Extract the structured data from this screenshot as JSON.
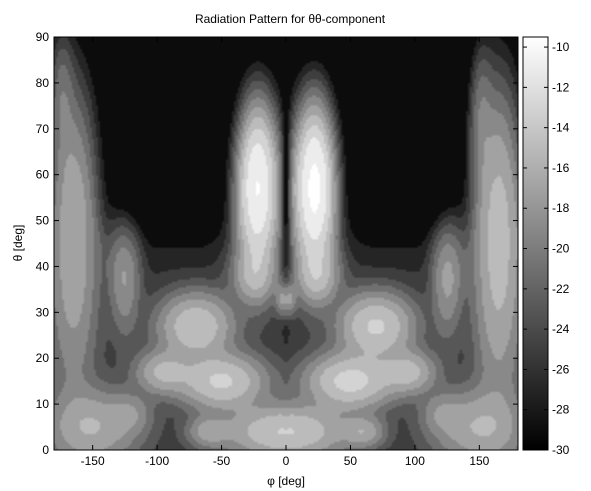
{
  "chart_data": {
    "type": "heatmap",
    "title": "Radiation Pattern for θθ-component",
    "xlabel": "φ [deg]",
    "ylabel": "θ [deg]",
    "xlim": [
      -180,
      180
    ],
    "ylim": [
      0,
      90
    ],
    "xticks": [
      "-150",
      "-100",
      "-50",
      "0",
      "50",
      "100",
      "150"
    ],
    "yticks": [
      "0",
      "10",
      "20",
      "30",
      "40",
      "50",
      "60",
      "70",
      "80",
      "90"
    ],
    "colorbar": {
      "ticks": [
        "-10",
        "-12",
        "-14",
        "-16",
        "-18",
        "-20",
        "-22",
        "-24",
        "-26",
        "-28",
        "-30"
      ],
      "range": [
        -30,
        -9.5
      ],
      "colormap": "gray"
    },
    "levels": [
      -30,
      -28,
      -26,
      -24,
      -22,
      -20,
      -18,
      -16,
      -14,
      -12,
      -10
    ],
    "grid": false,
    "features": [
      {
        "name": "main lobe right",
        "phi": 22,
        "theta": 57,
        "value": -14
      },
      {
        "name": "main lobe left",
        "phi": -22,
        "theta": 57,
        "value": -15
      },
      {
        "name": "null",
        "phi": 0,
        "theta": 55,
        "value": -30
      },
      {
        "name": "central spot",
        "phi": 0,
        "theta": 33,
        "value": -27
      },
      {
        "name": "side lobe right",
        "phi": 70,
        "theta": 27,
        "value": -19
      },
      {
        "name": "side lobe left",
        "phi": -70,
        "theta": 27,
        "value": -20
      },
      {
        "name": "lower lobe right",
        "phi": 50,
        "theta": 15,
        "value": -19
      },
      {
        "name": "lower lobe left",
        "phi": -50,
        "theta": 15,
        "value": -20
      },
      {
        "name": "low arch center",
        "phi": 0,
        "theta": 4,
        "value": -20
      },
      {
        "name": "far lobe right",
        "phi": 160,
        "theta": 45,
        "value": -20
      },
      {
        "name": "far lobe left",
        "phi": -160,
        "theta": 45,
        "value": -22
      }
    ]
  }
}
